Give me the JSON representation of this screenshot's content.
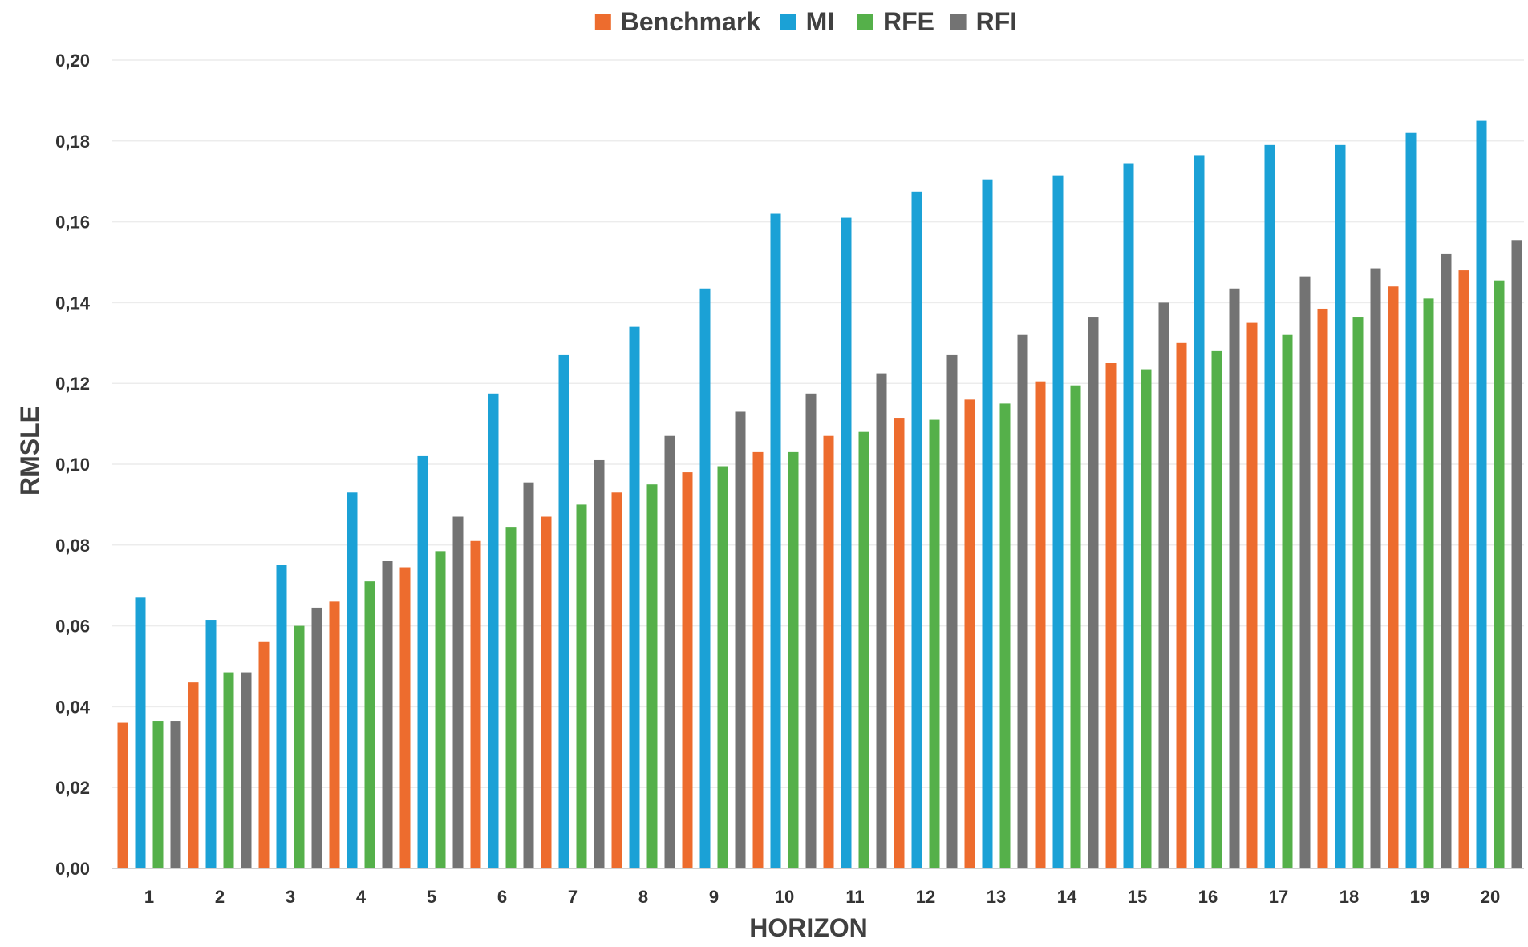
{
  "chart_data": {
    "type": "bar",
    "categories": [
      "1",
      "2",
      "3",
      "4",
      "5",
      "6",
      "7",
      "8",
      "9",
      "10",
      "11",
      "12",
      "13",
      "14",
      "15",
      "16",
      "17",
      "18",
      "19",
      "20"
    ],
    "series": [
      {
        "name": "Benchmark",
        "color": "#ED6C2E",
        "values": [
          0.036,
          0.046,
          0.056,
          0.066,
          0.0745,
          0.081,
          0.087,
          0.093,
          0.098,
          0.103,
          0.107,
          0.1115,
          0.116,
          0.1205,
          0.125,
          0.13,
          0.135,
          0.1385,
          0.144,
          0.148
        ]
      },
      {
        "name": "MI",
        "color": "#1BA1D6",
        "values": [
          0.067,
          0.0615,
          0.075,
          0.093,
          0.102,
          0.1175,
          0.127,
          0.134,
          0.1435,
          0.162,
          0.161,
          0.1675,
          0.1705,
          0.1715,
          0.1745,
          0.1765,
          0.179,
          0.179,
          0.182,
          0.185
        ]
      },
      {
        "name": "RFE",
        "color": "#55B04A",
        "values": [
          0.0365,
          0.0485,
          0.06,
          0.071,
          0.0785,
          0.0845,
          0.09,
          0.095,
          0.0995,
          0.103,
          0.108,
          0.111,
          0.115,
          0.1195,
          0.1235,
          0.128,
          0.132,
          0.1365,
          0.141,
          0.1455
        ]
      },
      {
        "name": "RFI",
        "color": "#737373",
        "values": [
          0.0365,
          0.0485,
          0.0645,
          0.076,
          0.087,
          0.0955,
          0.101,
          0.107,
          0.113,
          0.1175,
          0.1225,
          0.127,
          0.132,
          0.1365,
          0.14,
          0.1435,
          0.1465,
          0.1485,
          0.152,
          0.1555
        ]
      }
    ],
    "yticks": [
      "0,00",
      "0,02",
      "0,04",
      "0,06",
      "0,08",
      "0,10",
      "0,12",
      "0,14",
      "0,16",
      "0,18",
      "0,20"
    ],
    "ylim": [
      0,
      0.2
    ],
    "xlabel": "HORIZON",
    "ylabel": "RMSLE",
    "legend_position": "top-center",
    "grid": true
  }
}
